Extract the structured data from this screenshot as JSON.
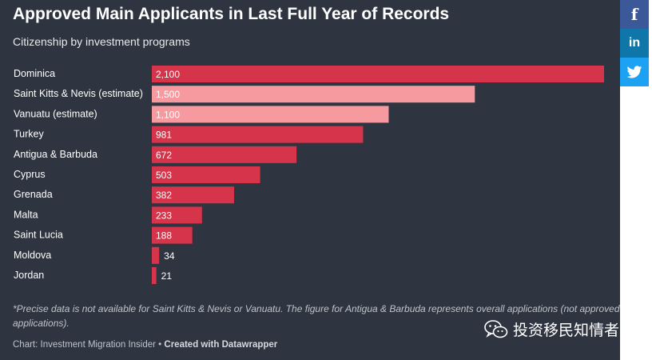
{
  "header": {
    "title": "Approved Main Applicants in Last Full Year of Records",
    "subtitle": "Citizenship by investment programs"
  },
  "chart_data": {
    "type": "bar",
    "orientation": "horizontal",
    "categories": [
      "Dominica",
      "Saint Kitts & Nevis (estimate)",
      "Vanuatu (estimate)",
      "Turkey",
      "Antigua & Barbuda",
      "Cyprus",
      "Grenada",
      "Malta",
      "Saint Lucia",
      "Moldova",
      "Jordan"
    ],
    "values": [
      2100,
      1500,
      1100,
      981,
      672,
      503,
      382,
      233,
      188,
      34,
      21
    ],
    "value_labels": [
      "2,100",
      "1,500",
      "1,100",
      "981",
      "672",
      "503",
      "382",
      "233",
      "188",
      "34",
      "21"
    ],
    "estimate": [
      false,
      true,
      true,
      false,
      false,
      false,
      false,
      false,
      false,
      false,
      false
    ],
    "xlim": [
      0,
      2100
    ],
    "grid": false,
    "colors": {
      "bar": "#d6344a",
      "estimate_bar": "#f79aa0",
      "value_text": "#ffffff"
    }
  },
  "footer": {
    "footnote": "*Precise data is not available for Saint Kitts & Nevis or Vanuatu. The figure for Antigua & Barbuda represents overall applications (not approved applications).",
    "credit_prefix": "Chart: Investment Migration Insider • ",
    "credit_tool": "Created with Datawrapper",
    "watermark": "投资移民知情者"
  },
  "social": [
    {
      "name": "facebook",
      "glyph": "f"
    },
    {
      "name": "linkedin",
      "glyph": "in"
    },
    {
      "name": "twitter",
      "glyph": ""
    }
  ]
}
